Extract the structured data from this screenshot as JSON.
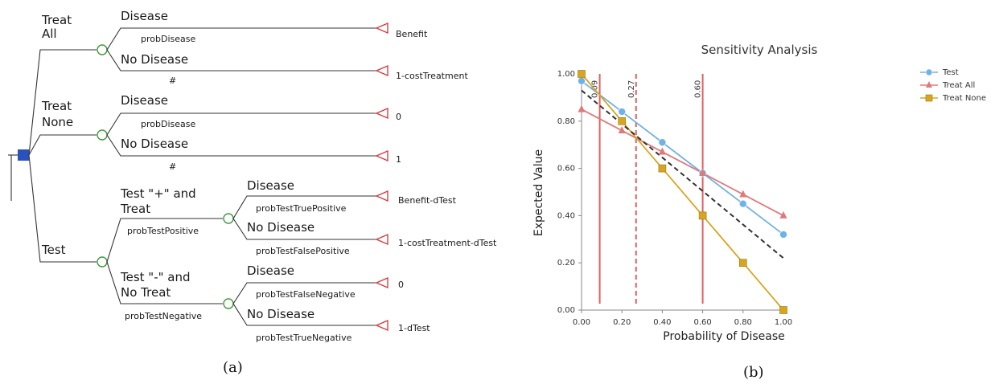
{
  "tree": {
    "treat_all": {
      "label_line1": "Treat",
      "label_line2": "All",
      "disease": "Disease",
      "prob_disease": "probDisease",
      "no_disease": "No Disease",
      "hash": "#",
      "payoff_disease": "Benefit",
      "payoff_no_disease": "1-costTreatment"
    },
    "treat_none": {
      "label_line1": "Treat",
      "label_line2": "None",
      "disease": "Disease",
      "prob_disease": "probDisease",
      "no_disease": "No Disease",
      "hash": "#",
      "payoff_disease": "0",
      "payoff_no_disease": "1"
    },
    "test": {
      "label": "Test",
      "positive_line1": "Test \"+\" and",
      "positive_line2": "Treat",
      "prob_positive": "probTestPositive",
      "pos_disease": "Disease",
      "prob_true_positive": "probTestTruePositive",
      "pos_no_disease": "No Disease",
      "prob_false_positive": "probTestFalsePositive",
      "payoff_pos_disease": "Benefit-dTest",
      "payoff_pos_no_disease": "1-costTreatment-dTest",
      "negative_line1": "Test \"-\" and",
      "negative_line2": "No Treat",
      "prob_negative": "probTestNegative",
      "neg_disease": "Disease",
      "prob_false_negative": "probTestFalseNegative",
      "neg_no_disease": "No Disease",
      "prob_true_negative": "probTestTrueNegative",
      "payoff_neg_disease": "0",
      "payoff_neg_no_disease": "1-dTest"
    },
    "caption": "(a)"
  },
  "colors": {
    "decision_node": "#2a52be",
    "chance_node": "#3a9a3a",
    "terminal": "#d9343a",
    "test": "#6fb2e8",
    "treat_all": "#e07a7a",
    "treat_none": "#d8a520",
    "threshold_line": "#e06060"
  },
  "chart_data": {
    "type": "line",
    "title": "Sensitivity Analysis",
    "xlabel": "Probability of Disease",
    "ylabel": "Expected Value",
    "xlim": [
      0,
      1
    ],
    "ylim": [
      0,
      1
    ],
    "xticks": [
      "0.00",
      "0.20",
      "0.40",
      "0.60",
      "0.80",
      "1.00"
    ],
    "yticks": [
      "0.00",
      "0.20",
      "0.40",
      "0.60",
      "0.80",
      "1.00"
    ],
    "legend_position": "top-right",
    "series": [
      {
        "name": "Test",
        "marker": "circle",
        "color": "#6fb2e8",
        "x": [
          0,
          0.2,
          0.4,
          0.6,
          0.8,
          1.0
        ],
        "y": [
          0.97,
          0.84,
          0.71,
          0.58,
          0.45,
          0.32
        ]
      },
      {
        "name": "Treat All",
        "marker": "triangle",
        "color": "#e07a7a",
        "x": [
          0,
          0.2,
          0.4,
          0.6,
          0.8,
          1.0
        ],
        "y": [
          0.85,
          0.76,
          0.67,
          0.58,
          0.49,
          0.4
        ]
      },
      {
        "name": "Treat None",
        "marker": "square",
        "color": "#d8a520",
        "x": [
          0,
          0.2,
          0.4,
          0.6,
          0.8,
          1.0
        ],
        "y": [
          1.0,
          0.8,
          0.6,
          0.4,
          0.2,
          0.0
        ]
      }
    ],
    "dashed_line": {
      "x": [
        0,
        1.0
      ],
      "y": [
        0.93,
        0.22
      ]
    },
    "thresholds": [
      {
        "x": 0.09,
        "label": "0.09",
        "style": "solid"
      },
      {
        "x": 0.27,
        "label": "0.27",
        "style": "dashed"
      },
      {
        "x": 0.6,
        "label": "0.60",
        "style": "solid"
      }
    ],
    "caption": "(b)"
  }
}
